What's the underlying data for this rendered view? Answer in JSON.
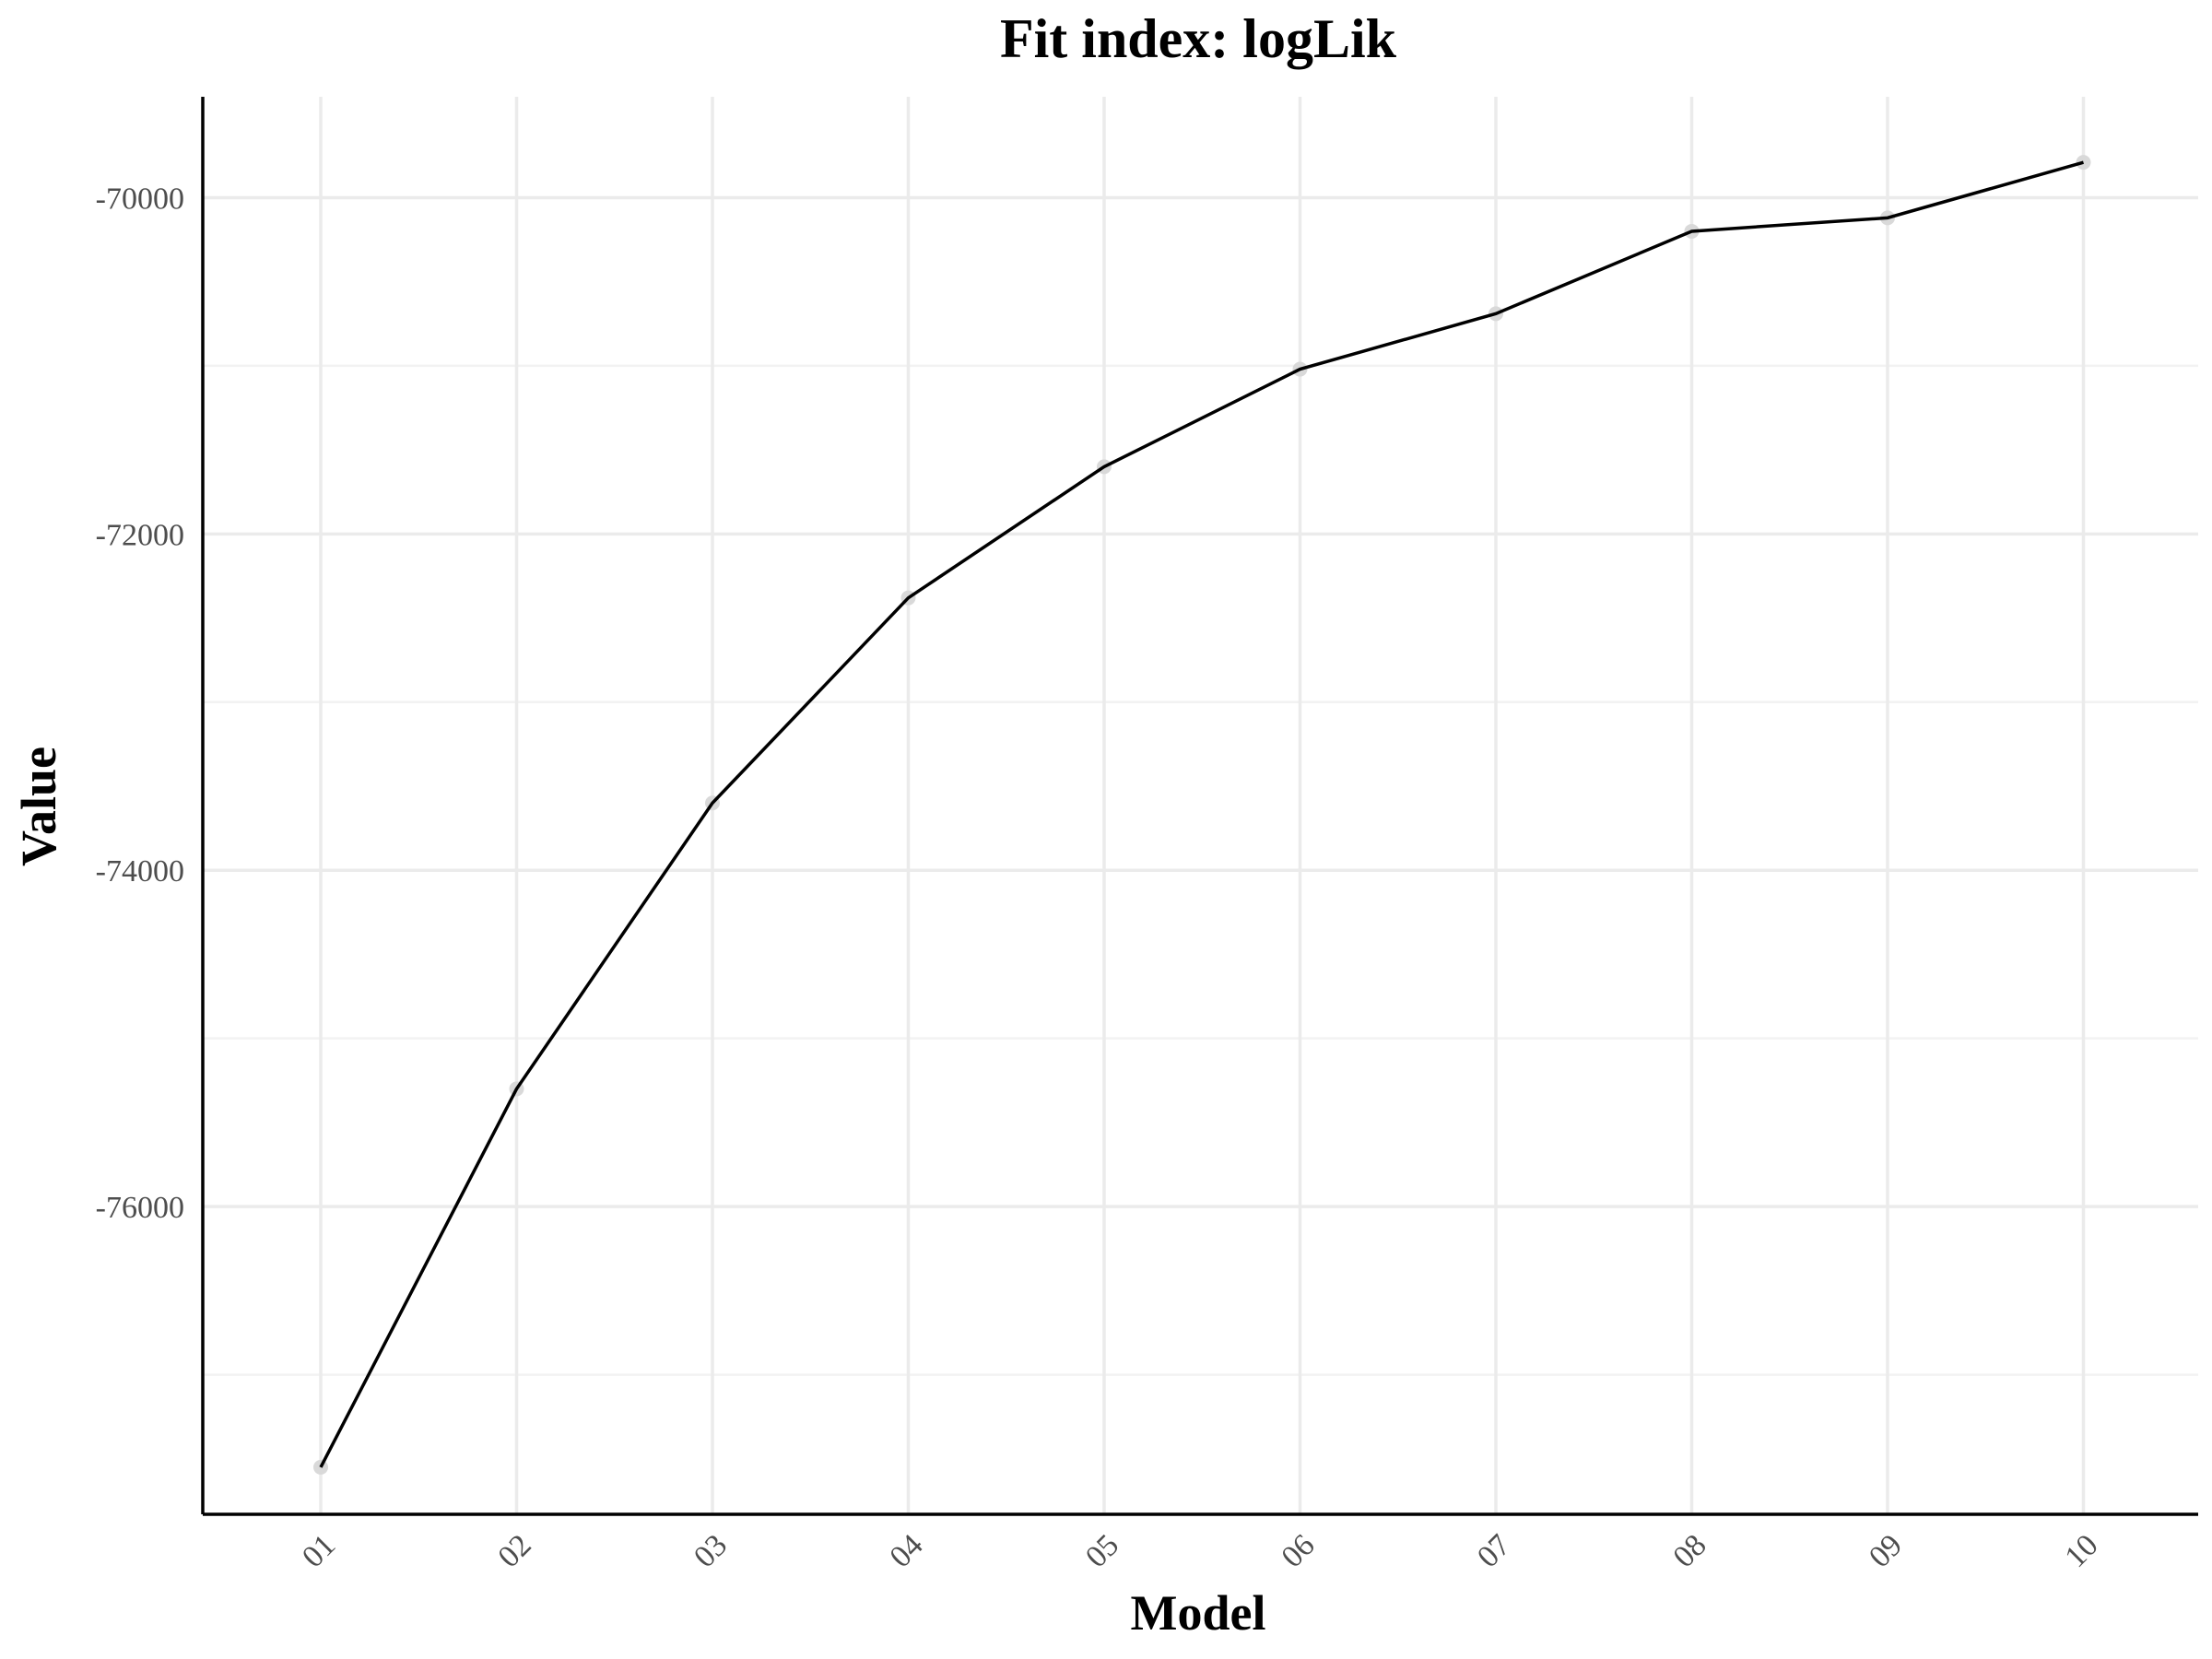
{
  "chart_data": {
    "type": "line",
    "title": "Fit index: logLik",
    "xlabel": "Model",
    "ylabel": "Value",
    "categories": [
      "01",
      "02",
      "03",
      "04",
      "05",
      "06",
      "07",
      "08",
      "09",
      "10"
    ],
    "values": [
      -77550,
      -75300,
      -73600,
      -72380,
      -71600,
      -71020,
      -70690,
      -70200,
      -70120,
      -69790
    ],
    "ylim": [
      -77830,
      -69400
    ],
    "yticks": [
      -76000,
      -74000,
      -72000,
      -70000
    ],
    "ytick_labels": [
      "-76000",
      "-74000",
      "-72000",
      "-70000"
    ],
    "grid": true,
    "colors": {
      "line": "#000000",
      "point": "#d9d9d9",
      "grid": "#ebebeb",
      "axis": "#000000"
    }
  }
}
